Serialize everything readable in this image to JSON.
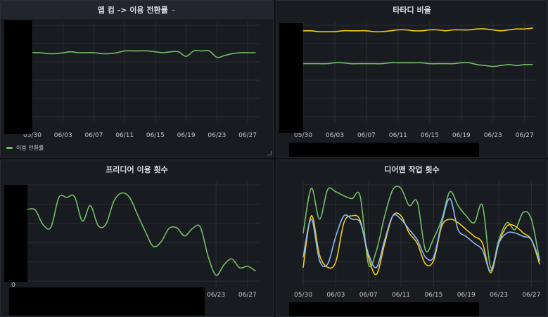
{
  "colors": {
    "green": "#73bf69",
    "yellow": "#f2cc0c",
    "blue": "#8ab8ff"
  },
  "panels": [
    {
      "id": "p1",
      "title": "앱 컴 -> 이용 전환률",
      "has_menu": true,
      "menu_icon": "chevron-down-icon",
      "legend": [
        {
          "label": "이용 전환률",
          "color": "#73bf69"
        }
      ],
      "x_ticks": [
        "05/30",
        "06/03",
        "06/07",
        "06/11",
        "06/15",
        "06/19",
        "06/23",
        "06/27"
      ],
      "y_ticks": []
    },
    {
      "id": "p2",
      "title": "타타디 비율",
      "has_menu": false,
      "legend": [],
      "x_ticks": [
        "05/30",
        "06/03",
        "06/07",
        "06/11",
        "06/15",
        "06/19",
        "06/23",
        "06/27"
      ],
      "y_ticks": []
    },
    {
      "id": "p3",
      "title": "프리디어 이용 횟수",
      "has_menu": false,
      "legend": [],
      "x_ticks": [
        "06/23",
        "06/27"
      ],
      "y_ticks": [
        "0"
      ]
    },
    {
      "id": "p4",
      "title": "디어맨 작업 횟수",
      "has_menu": false,
      "legend": [],
      "x_ticks": [
        "05/30",
        "06/03",
        "06/07",
        "06/11",
        "06/15",
        "06/19",
        "06/23",
        "06/27"
      ],
      "y_ticks": []
    }
  ],
  "chart_data": [
    {
      "type": "line",
      "title": "앱 컴 -> 이용 전환률",
      "x": [
        "05/30",
        "05/31",
        "06/01",
        "06/02",
        "06/03",
        "06/04",
        "06/05",
        "06/06",
        "06/07",
        "06/08",
        "06/09",
        "06/10",
        "06/11",
        "06/12",
        "06/13",
        "06/14",
        "06/15",
        "06/16",
        "06/17",
        "06/18",
        "06/19",
        "06/20",
        "06/21",
        "06/22",
        "06/23",
        "06/24",
        "06/25",
        "06/26",
        "06/27",
        "06/28"
      ],
      "ylim": [
        0,
        1
      ],
      "series": [
        {
          "name": "이용 전환률",
          "color": "#73bf69",
          "values": [
            0.7,
            0.7,
            0.69,
            0.69,
            0.7,
            0.71,
            0.7,
            0.7,
            0.7,
            0.69,
            0.69,
            0.7,
            0.72,
            0.72,
            0.72,
            0.72,
            0.71,
            0.7,
            0.71,
            0.71,
            0.66,
            0.72,
            0.72,
            0.72,
            0.65,
            0.67,
            0.69,
            0.7,
            0.7,
            0.7
          ]
        }
      ]
    },
    {
      "type": "line",
      "title": "타타디 비율",
      "x": [
        "05/30",
        "05/31",
        "06/01",
        "06/02",
        "06/03",
        "06/04",
        "06/05",
        "06/06",
        "06/07",
        "06/08",
        "06/09",
        "06/10",
        "06/11",
        "06/12",
        "06/13",
        "06/14",
        "06/15",
        "06/16",
        "06/17",
        "06/18",
        "06/19",
        "06/20",
        "06/21",
        "06/22",
        "06/23",
        "06/24",
        "06/25",
        "06/26",
        "06/27",
        "06/28"
      ],
      "ylim": [
        0,
        1
      ],
      "series": [
        {
          "color": "#f2cc0c",
          "values": [
            0.94,
            0.94,
            0.93,
            0.93,
            0.93,
            0.94,
            0.94,
            0.94,
            0.94,
            0.93,
            0.93,
            0.94,
            0.95,
            0.95,
            0.94,
            0.94,
            0.95,
            0.95,
            0.94,
            0.95,
            0.95,
            0.95,
            0.96,
            0.96,
            0.95,
            0.94,
            0.95,
            0.96,
            0.96,
            0.97
          ]
        },
        {
          "color": "#73bf69",
          "values": [
            0.58,
            0.58,
            0.58,
            0.58,
            0.59,
            0.59,
            0.58,
            0.58,
            0.58,
            0.58,
            0.58,
            0.59,
            0.59,
            0.59,
            0.59,
            0.59,
            0.58,
            0.58,
            0.58,
            0.58,
            0.59,
            0.59,
            0.57,
            0.56,
            0.55,
            0.56,
            0.57,
            0.56,
            0.57,
            0.57
          ]
        }
      ]
    },
    {
      "type": "line",
      "title": "프리디어 이용 횟수",
      "x": [
        "05/30",
        "05/31",
        "06/01",
        "06/02",
        "06/03",
        "06/04",
        "06/05",
        "06/06",
        "06/07",
        "06/08",
        "06/09",
        "06/10",
        "06/11",
        "06/12",
        "06/13",
        "06/14",
        "06/15",
        "06/16",
        "06/17",
        "06/18",
        "06/19",
        "06/20",
        "06/21",
        "06/22",
        "06/23",
        "06/24",
        "06/25",
        "06/26",
        "06/27",
        "06/28"
      ],
      "ylim": [
        0,
        130
      ],
      "series": [
        {
          "color": "#73bf69",
          "values": [
            97,
            96,
            76,
            73,
            113,
            113,
            114,
            81,
            102,
            75,
            77,
            108,
            119,
            113,
            90,
            67,
            47,
            53,
            71,
            72,
            61,
            71,
            73,
            33,
            8,
            22,
            30,
            18,
            20,
            14
          ]
        }
      ]
    },
    {
      "type": "line",
      "title": "디어맨 작업 횟수",
      "x": [
        "05/30",
        "05/31",
        "06/01",
        "06/02",
        "06/03",
        "06/04",
        "06/05",
        "06/06",
        "06/07",
        "06/08",
        "06/09",
        "06/10",
        "06/11",
        "06/12",
        "06/13",
        "06/14",
        "06/15",
        "06/16",
        "06/17",
        "06/18",
        "06/19",
        "06/20",
        "06/21",
        "06/22",
        "06/23",
        "06/24",
        "06/25",
        "06/26",
        "06/27",
        "06/28"
      ],
      "ylim": [
        0,
        140
      ],
      "series": [
        {
          "color": "#73bf69",
          "values": [
            70,
            135,
            90,
            133,
            130,
            124,
            120,
            123,
            25,
            45,
            95,
            133,
            135,
            110,
            115,
            45,
            62,
            90,
            130,
            110,
            95,
            85,
            110,
            20,
            60,
            85,
            75,
            100,
            90,
            30
          ]
        },
        {
          "color": "#f2cc0c",
          "values": [
            20,
            95,
            38,
            20,
            28,
            85,
            95,
            88,
            35,
            10,
            55,
            95,
            95,
            70,
            55,
            25,
            30,
            80,
            90,
            85,
            75,
            65,
            55,
            12,
            55,
            80,
            80,
            70,
            60,
            25
          ]
        },
        {
          "color": "#8ab8ff",
          "values": [
            35,
            90,
            30,
            25,
            65,
            95,
            90,
            85,
            40,
            20,
            60,
            95,
            90,
            75,
            60,
            35,
            35,
            85,
            120,
            75,
            65,
            55,
            45,
            15,
            55,
            70,
            70,
            65,
            60,
            30
          ]
        }
      ]
    }
  ]
}
